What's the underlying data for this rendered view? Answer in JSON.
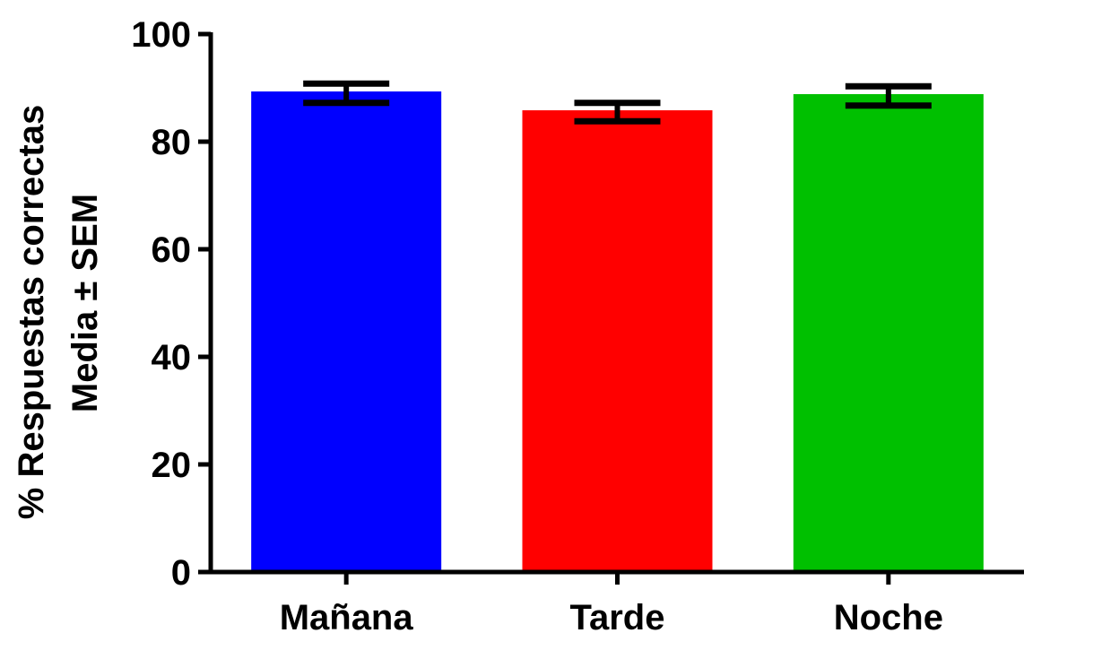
{
  "chart_data": {
    "type": "bar",
    "title": "",
    "xlabel": "",
    "ylabel_lines": [
      "% Respuestas correctas",
      "Media ± SEM"
    ],
    "categories": [
      "Mañana",
      "Tarde",
      "Noche"
    ],
    "values": [
      89,
      85.5,
      88.5
    ],
    "errors": [
      1.8,
      1.7,
      1.8
    ],
    "colors": [
      "#0000ff",
      "#ff0000",
      "#00c000"
    ],
    "ylim": [
      0,
      100
    ],
    "yticks": [
      0,
      20,
      40,
      60,
      80,
      100
    ],
    "ytick_labels": [
      "0",
      "20",
      "40",
      "60",
      "80",
      "100"
    ],
    "grid": false,
    "legend": "none"
  }
}
